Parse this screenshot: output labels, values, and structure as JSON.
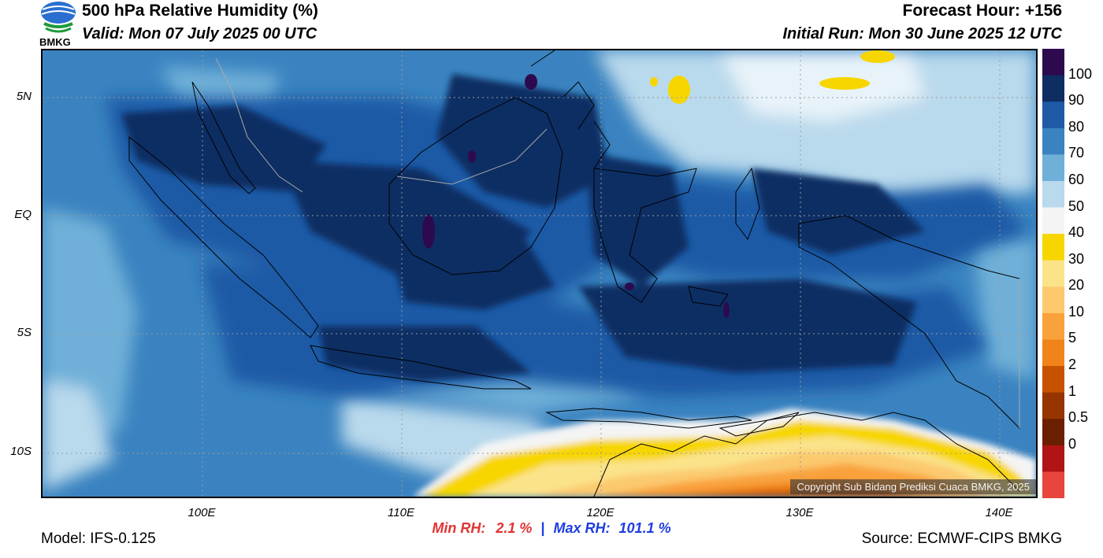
{
  "header": {
    "title": "500 hPa Relative Humidity (%)",
    "valid": "Valid: Mon 07 July 2025 00 UTC",
    "forecast_hour": "Forecast Hour: +156",
    "initial_run": "Initial Run: Mon 30 June 2025 12 UTC",
    "logo_text": "BMKG"
  },
  "axes": {
    "y_labels": [
      "5N",
      "EQ",
      "5S",
      "10S"
    ],
    "x_labels": [
      "100E",
      "110E",
      "120E",
      "130E",
      "140E"
    ]
  },
  "colorbar": {
    "labels": [
      "100",
      "90",
      "80",
      "70",
      "60",
      "50",
      "40",
      "30",
      "20",
      "10",
      "5",
      "2",
      "1",
      "0.5",
      "0"
    ],
    "colors": [
      "#2d0a4e",
      "#0d2d63",
      "#1f5aa6",
      "#3a83c0",
      "#6fb0d8",
      "#b9d9ec",
      "#f4f4f4",
      "#f7d600",
      "#fbe38a",
      "#fcc96e",
      "#f9a23c",
      "#f0841a",
      "#c65200",
      "#963400",
      "#6a1f00",
      "#b01414",
      "#e8463c"
    ]
  },
  "stats": {
    "min_label": "Min RH:",
    "min_value": "2.1 %",
    "separator": "|",
    "max_label": "Max RH:",
    "max_value": "101.1 %"
  },
  "footer": {
    "model": "Model: IFS-0.125",
    "source": "Source: ECMWF-CIPS BMKG",
    "copyright": "Copyright Sub Bidang Prediksi Cuaca BMKG, 2025"
  }
}
